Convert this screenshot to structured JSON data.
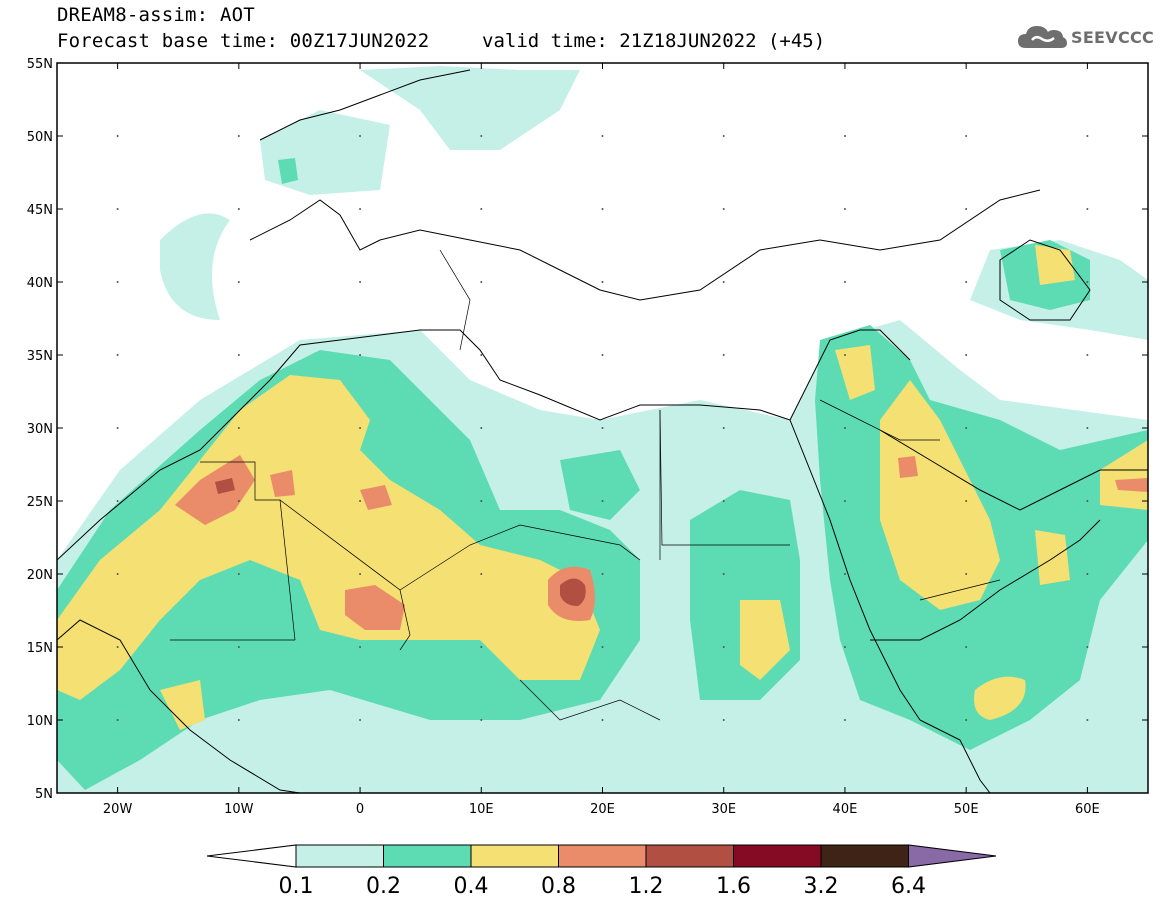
{
  "header": {
    "title": "DREAM8-assim: AOT",
    "base_time": "Forecast base time: 00Z17JUN2022",
    "valid_time": "valid time: 21Z18JUN2022 (+45)"
  },
  "logo": {
    "text": "SEEVCCC",
    "icon": "cloud-icon"
  },
  "map": {
    "lon_range": [
      -25,
      65
    ],
    "lat_range": [
      5,
      55
    ],
    "lat_ticks": [
      {
        "lat": 55,
        "label": "55N"
      },
      {
        "lat": 50,
        "label": "50N"
      },
      {
        "lat": 45,
        "label": "45N"
      },
      {
        "lat": 40,
        "label": "40N"
      },
      {
        "lat": 35,
        "label": "35N"
      },
      {
        "lat": 30,
        "label": "30N"
      },
      {
        "lat": 25,
        "label": "25N"
      },
      {
        "lat": 20,
        "label": "20N"
      },
      {
        "lat": 15,
        "label": "15N"
      },
      {
        "lat": 10,
        "label": "10N"
      },
      {
        "lat": 5,
        "label": "5N"
      }
    ],
    "lon_ticks": [
      {
        "lon": -20,
        "label": "20W"
      },
      {
        "lon": -10,
        "label": "10W"
      },
      {
        "lon": 0,
        "label": "0"
      },
      {
        "lon": 10,
        "label": "10E"
      },
      {
        "lon": 20,
        "label": "20E"
      },
      {
        "lon": 30,
        "label": "30E"
      },
      {
        "lon": 40,
        "label": "40E"
      },
      {
        "lon": 50,
        "label": "50E"
      },
      {
        "lon": 60,
        "label": "60E"
      }
    ]
  },
  "colorbar": {
    "colors": [
      "#ffffff",
      "#c4f0e8",
      "#5ddcb3",
      "#f5e074",
      "#ea8c6a",
      "#b14f42",
      "#850a24",
      "#3e2316",
      "#8a6aa6"
    ],
    "labels": [
      "0.1",
      "0.2",
      "0.4",
      "0.8",
      "1.2",
      "1.6",
      "3.2",
      "6.4"
    ]
  },
  "chart_data": {
    "type": "heatmap",
    "variable": "AOT",
    "levels": [
      0.1,
      0.2,
      0.4,
      0.8,
      1.2,
      1.6,
      3.2,
      6.4
    ],
    "x": [
      -25,
      65
    ],
    "y": [
      5,
      55
    ]
  }
}
